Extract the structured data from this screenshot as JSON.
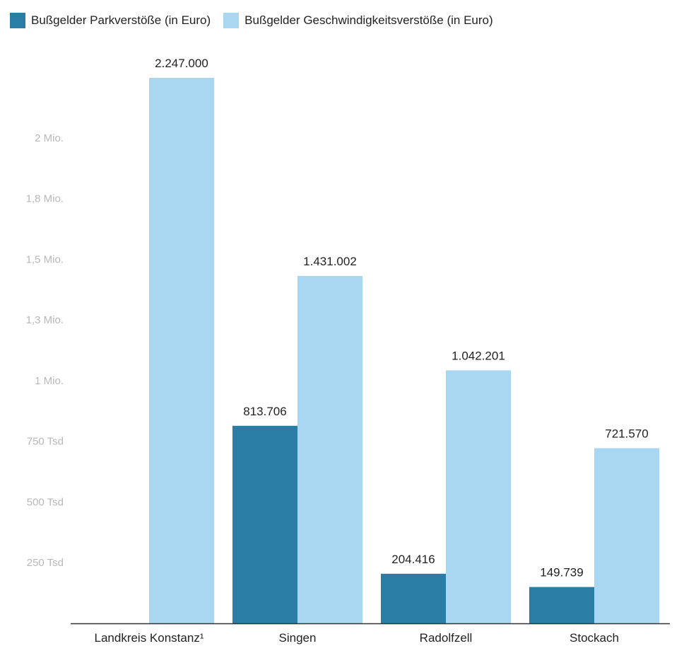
{
  "chart_data": {
    "type": "bar",
    "categories": [
      "Landkreis Konstanz¹",
      "Singen",
      "Radolfzell",
      "Stockach"
    ],
    "series": [
      {
        "name": "Bußgelder Parkverstöße (in Euro)",
        "values": [
          null,
          813706,
          204416,
          149739
        ],
        "labels": [
          "",
          "813.706",
          "204.416",
          "149.739"
        ],
        "color": "#2a7ea6"
      },
      {
        "name": "Bußgelder Geschwindigkeitsverstöße (in Euro)",
        "values": [
          2247000,
          1431002,
          1042201,
          721570
        ],
        "labels": [
          "2.247.000",
          "1.431.002",
          "1.042.201",
          "721.570"
        ],
        "color": "#a9d6f0"
      }
    ],
    "yticks": [
      {
        "value": 250000,
        "label": "250 Tsd"
      },
      {
        "value": 500000,
        "label": "500 Tsd"
      },
      {
        "value": 750000,
        "label": "750 Tsd"
      },
      {
        "value": 1000000,
        "label": "1 Mio."
      },
      {
        "value": 1250000,
        "label": "1,3 Mio."
      },
      {
        "value": 1500000,
        "label": "1,5 Mio."
      },
      {
        "value": 1750000,
        "label": "1,8 Mio."
      },
      {
        "value": 2000000,
        "label": "2 Mio."
      }
    ],
    "ylim": [
      0,
      2500000
    ],
    "grid": false,
    "legend_position": "top-left"
  }
}
